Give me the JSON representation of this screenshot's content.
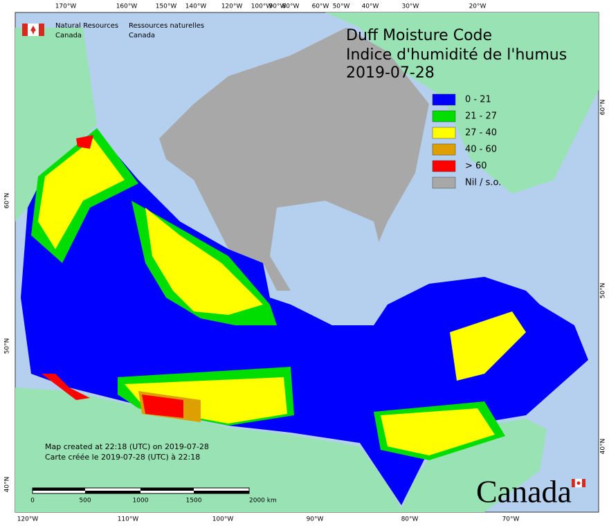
{
  "header": {
    "agency_en": [
      "Natural Resources",
      "Canada"
    ],
    "agency_fr": [
      "Ressources naturelles",
      "Canada"
    ]
  },
  "title": [
    "Duff Moisture Code",
    "Indice d'humidité de l'humus",
    "2019-07-28"
  ],
  "legend": [
    {
      "label": "0 - 21",
      "color": "#0000ff"
    },
    {
      "label": "21 - 27",
      "color": "#00dd00"
    },
    {
      "label": "27 - 40",
      "color": "#ffff00"
    },
    {
      "label": "40 - 60",
      "color": "#dda000"
    },
    {
      "label": "> 60",
      "color": "#ff0000"
    },
    {
      "label": "Nil / s.o.",
      "color": "#a8a8a8"
    }
  ],
  "graticule": {
    "top": [
      "170°W",
      "160°W",
      "150°W",
      "140°W",
      "120°W",
      "100°W",
      "90°W",
      "80°W",
      "60°W",
      "50°W",
      "40°W",
      "30°W",
      "20°W"
    ],
    "bottom": [
      "120°W",
      "110°W",
      "100°W",
      "90°W",
      "80°W",
      "70°W"
    ],
    "left": [
      "60°N",
      "50°N",
      "40°N"
    ],
    "right": [
      "60°N",
      "50°N",
      "40°N"
    ]
  },
  "notes": [
    "Map created at 22:18 (UTC) on 2019-07-28",
    "Carte créée le 2019-07-28 (UTC) à 22:18"
  ],
  "scale_bar": [
    "0",
    "500",
    "1000",
    "1500",
    "2000  km"
  ],
  "wordmark": "Canada"
}
